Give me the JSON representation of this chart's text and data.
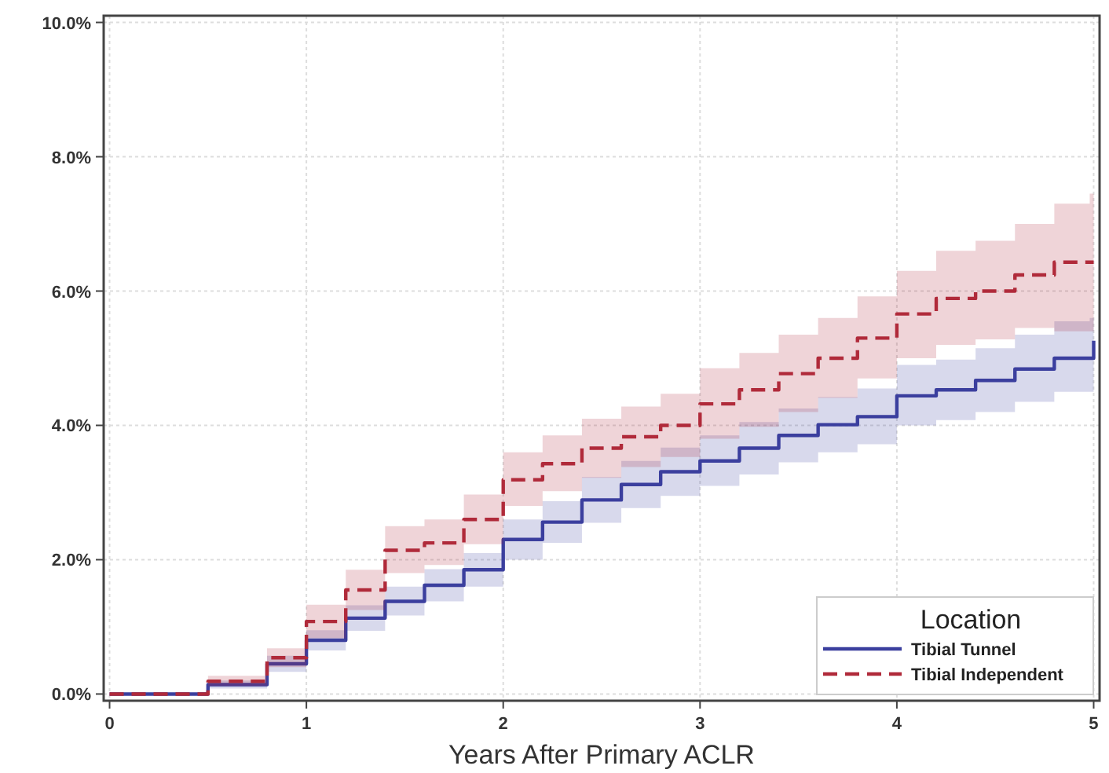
{
  "chart_data": {
    "type": "step",
    "xlabel": "Years After Primary ACLR",
    "legend_title": "Location",
    "legend": "bottom right",
    "grid": true,
    "x": [
      0,
      0.5,
      0.8,
      1.0,
      1.2,
      1.4,
      1.6,
      1.8,
      2.0,
      2.2,
      2.4,
      2.6,
      2.8,
      3.0,
      3.2,
      3.4,
      3.6,
      3.8,
      4.0,
      4.2,
      4.4,
      4.6,
      4.8,
      4.98,
      5.0
    ],
    "xlim": [
      -0.03,
      5.03
    ],
    "xticks": [
      0,
      1,
      2,
      3,
      4,
      5
    ],
    "ylim": [
      -0.1,
      10.1
    ],
    "yticks": [
      {
        "value": 0,
        "label": "0.0%"
      },
      {
        "value": 2,
        "label": "2.0%"
      },
      {
        "value": 4,
        "label": "4.0%"
      },
      {
        "value": 6,
        "label": "6.0%"
      },
      {
        "value": 8,
        "label": "8.0%"
      },
      {
        "value": 10,
        "label": "10.0%"
      }
    ],
    "series": [
      {
        "name": "Tibial Tunnel",
        "color": "#3b3f9e",
        "line_style": "solid",
        "values": [
          0,
          0.14,
          0.45,
          0.8,
          1.13,
          1.38,
          1.62,
          1.85,
          2.3,
          2.56,
          2.89,
          3.12,
          3.31,
          3.47,
          3.66,
          3.85,
          4.01,
          4.13,
          4.44,
          4.53,
          4.67,
          4.84,
          5.0,
          5.0,
          5.26
        ],
        "lower": [
          0,
          0.08,
          0.33,
          0.65,
          0.94,
          1.17,
          1.38,
          1.6,
          2.0,
          2.25,
          2.55,
          2.77,
          2.95,
          3.1,
          3.27,
          3.45,
          3.6,
          3.72,
          4.0,
          4.08,
          4.2,
          4.35,
          4.5,
          4.5,
          4.55
        ],
        "upper": [
          0,
          0.2,
          0.57,
          0.95,
          1.32,
          1.6,
          1.86,
          2.1,
          2.6,
          2.87,
          3.23,
          3.47,
          3.67,
          3.85,
          4.05,
          4.25,
          4.42,
          4.55,
          4.9,
          4.98,
          5.15,
          5.35,
          5.55,
          5.6,
          5.8
        ]
      },
      {
        "name": "Tibial Independent",
        "color": "#b02a3a",
        "line_style": "dashed",
        "values": [
          0,
          0.19,
          0.54,
          1.08,
          1.55,
          2.14,
          2.25,
          2.6,
          3.19,
          3.43,
          3.66,
          3.83,
          4.0,
          4.32,
          4.53,
          4.77,
          5.0,
          5.3,
          5.66,
          5.89,
          6.0,
          6.24,
          6.43,
          6.43,
          6.43
        ],
        "lower": [
          0,
          0.12,
          0.4,
          0.83,
          1.25,
          1.8,
          1.92,
          2.23,
          2.8,
          3.02,
          3.22,
          3.38,
          3.53,
          3.8,
          3.98,
          4.2,
          4.41,
          4.7,
          5.0,
          5.2,
          5.28,
          5.45,
          5.4,
          5.4,
          5.4
        ],
        "upper": [
          0,
          0.27,
          0.68,
          1.33,
          1.85,
          2.5,
          2.6,
          2.97,
          3.6,
          3.85,
          4.1,
          4.28,
          4.47,
          4.85,
          5.08,
          5.35,
          5.6,
          5.92,
          6.3,
          6.6,
          6.75,
          7.0,
          7.3,
          7.45,
          7.5
        ]
      }
    ]
  }
}
